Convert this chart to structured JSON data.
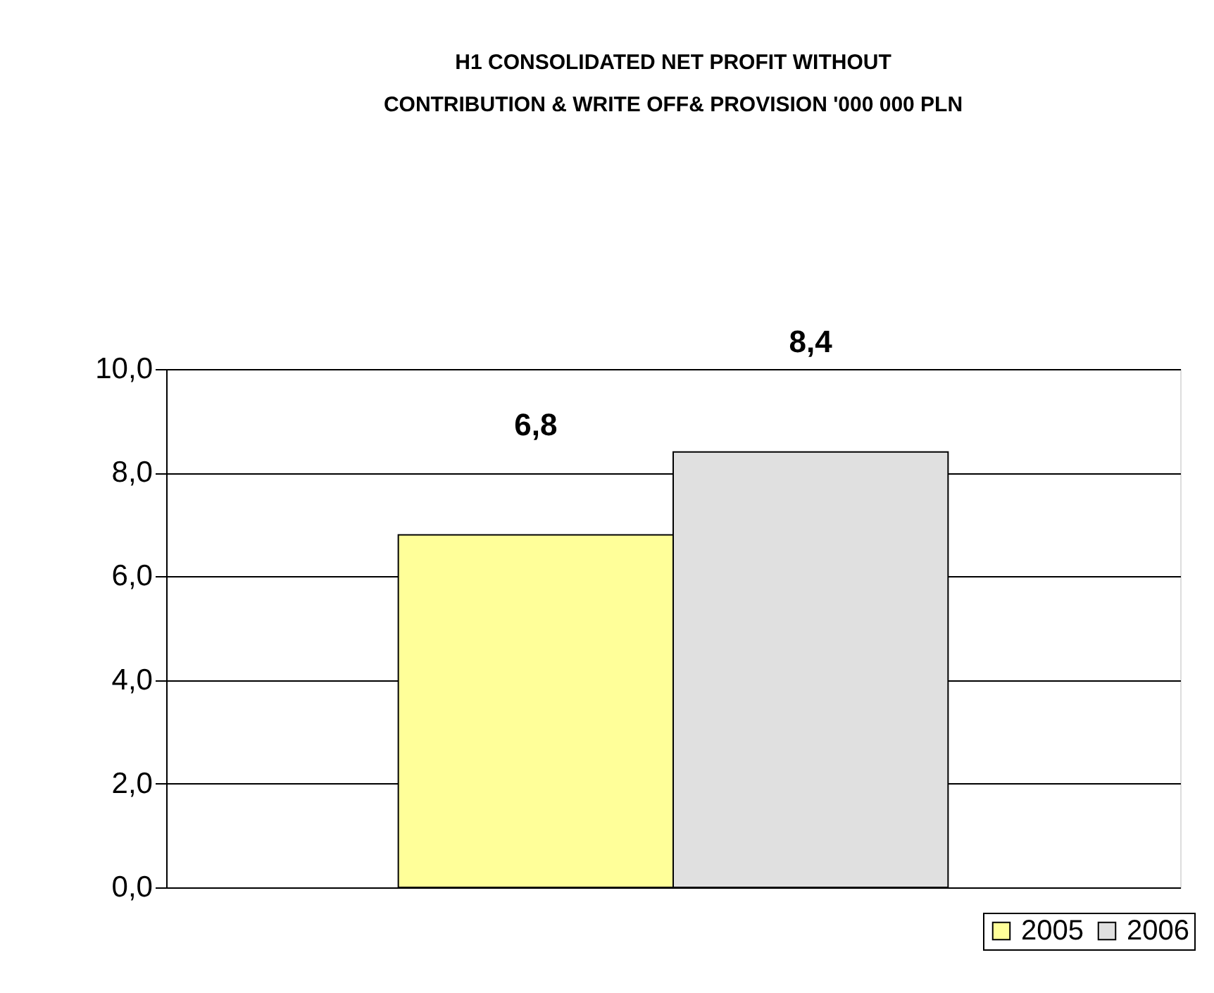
{
  "chart_data": {
    "type": "bar",
    "title": [
      "H1 CONSOLIDATED NET PROFIT WITHOUT",
      "CONTRIBUTION & WRITE OFF& PROVISION '000 000 PLN"
    ],
    "categories": [
      null
    ],
    "series": [
      {
        "name": "2005",
        "color": "#ffff99",
        "values": [
          6.8
        ],
        "value_labels": [
          "6,8"
        ]
      },
      {
        "name": "2006",
        "color": "#e0e0e0",
        "values": [
          8.4
        ],
        "value_labels": [
          "8,4"
        ]
      }
    ],
    "ylim": [
      0,
      10
    ],
    "yticks": [
      {
        "value": 0,
        "label": "0,0"
      },
      {
        "value": 2,
        "label": "2,0"
      },
      {
        "value": 4,
        "label": "4,0"
      },
      {
        "value": 6,
        "label": "6,0"
      },
      {
        "value": 8,
        "label": "8,0"
      },
      {
        "value": 10,
        "label": "10,0"
      }
    ],
    "grid": "y",
    "legend": "bottom right"
  }
}
